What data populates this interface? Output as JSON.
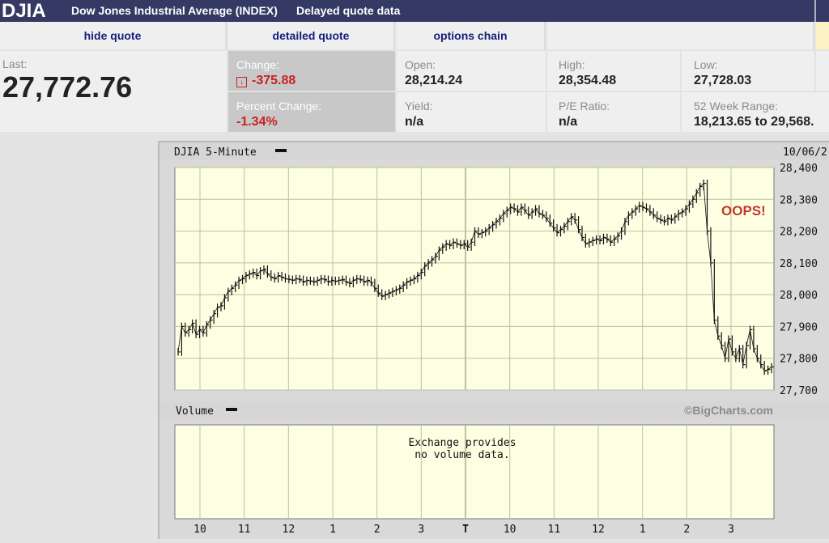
{
  "header": {
    "symbol": "DJIA",
    "name": "Dow Jones Industrial Average (INDEX)",
    "delay_note": "Delayed quote data"
  },
  "tabs": [
    {
      "label": "hide quote"
    },
    {
      "label": "detailed quote"
    },
    {
      "label": "options chain"
    }
  ],
  "quote": {
    "last_label": "Last:",
    "last_value": "27,772.76",
    "change_label": "Change:",
    "change_value": "-375.88",
    "pct_change_label": "Percent Change:",
    "pct_change_value": "-1.34%",
    "open_label": "Open:",
    "open_value": "28,214.24",
    "high_label": "High:",
    "high_value": "28,354.48",
    "low_label": "Low:",
    "low_value": "27,728.03",
    "yield_label": "Yield:",
    "yield_value": "n/a",
    "pe_label": "P/E Ratio:",
    "pe_value": "n/a",
    "range_label": "52 Week Range:",
    "range_value": "18,213.65 to 29,568."
  },
  "colors": {
    "header_bg": "#343a64",
    "tab_text": "#14207a",
    "down_red": "#c62320",
    "chart_bg": "#fefee2",
    "grid": "#b9c49a",
    "annotation": "#c0392b"
  },
  "chart_data": {
    "type": "line",
    "title": "DJIA 5-Minute",
    "date_label": "10/06/2",
    "annotation": "OOPS!",
    "watermark": "©BigCharts.com",
    "ylim": [
      27700,
      28400
    ],
    "y_ticks": [
      "28,400",
      "28,300",
      "28,200",
      "28,100",
      "28,000",
      "27,900",
      "27,800",
      "27,700"
    ],
    "x_ticks": [
      "10",
      "11",
      "12",
      "1",
      "2",
      "3",
      "T",
      "10",
      "11",
      "12",
      "1",
      "2",
      "3"
    ],
    "series": [
      {
        "values": [
          27820,
          27900,
          27880,
          27890,
          27910,
          27875,
          27890,
          27880,
          27905,
          27920,
          27940,
          27960,
          27965,
          27990,
          28010,
          28020,
          28030,
          28045,
          28050,
          28060,
          28065,
          28070,
          28060,
          28075,
          28080,
          28065,
          28055,
          28050,
          28060,
          28055,
          28050,
          28048,
          28045,
          28050,
          28048,
          28040,
          28045,
          28043,
          28040,
          28045,
          28050,
          28048,
          28040,
          28045,
          28042,
          28045,
          28048,
          28040,
          28035,
          28045,
          28050,
          28048,
          28040,
          28045,
          28038,
          28020,
          28005,
          27995,
          28000,
          28005,
          28010,
          28015,
          28020,
          28030,
          28040,
          28045,
          28050,
          28060,
          28070,
          28090,
          28100,
          28110,
          28120,
          28140,
          28150,
          28160,
          28155,
          28165,
          28160,
          28155,
          28160,
          28150,
          28165,
          28200,
          28190,
          28195,
          28200,
          28210,
          28220,
          28230,
          28240,
          28255,
          28265,
          28275,
          28270,
          28260,
          28275,
          28265,
          28250,
          28260,
          28270,
          28255,
          28250,
          28240,
          28225,
          28210,
          28195,
          28205,
          28215,
          28230,
          28245,
          28235,
          28205,
          28180,
          28160,
          28165,
          28170,
          28175,
          28170,
          28180,
          28175,
          28165,
          28175,
          28185,
          28200,
          28230,
          28250,
          28260,
          28270,
          28280,
          28275,
          28270,
          28260,
          28250,
          28240,
          28235,
          28230,
          28240,
          28235,
          28245,
          28255,
          28260,
          28270,
          28285,
          28300,
          28320,
          28340,
          28350,
          28200,
          28100,
          27920,
          27870,
          27840,
          27800,
          27860,
          27820,
          27800,
          27830,
          27780,
          27840,
          27890,
          27830,
          27800,
          27780,
          27760,
          27765,
          27773
        ]
      }
    ]
  },
  "volume": {
    "title": "Volume",
    "message_line1": "Exchange provides",
    "message_line2": "no volume data."
  }
}
